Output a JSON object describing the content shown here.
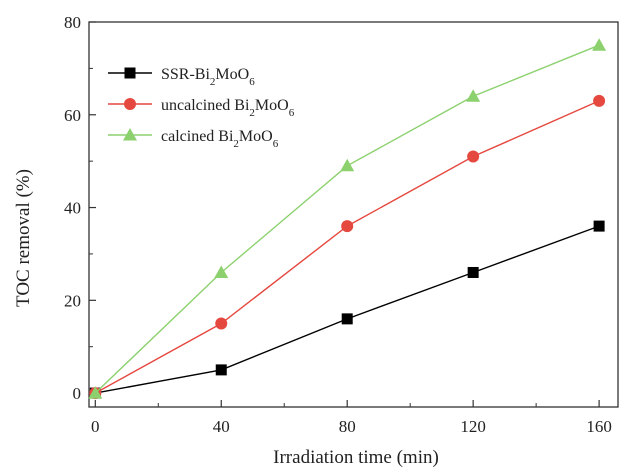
{
  "chart_data": {
    "type": "line",
    "xlabel": "Irradiation time (min)",
    "ylabel": "TOC removal (%)",
    "x": [
      0,
      40,
      80,
      120,
      160
    ],
    "xlim": [
      -2,
      166
    ],
    "ylim": [
      -3,
      80
    ],
    "xticks": [
      0,
      40,
      80,
      120,
      160
    ],
    "yticks": [
      0,
      20,
      40,
      60,
      80
    ],
    "grid": false,
    "legend_position": "top-left",
    "series": [
      {
        "name_main": "SSR-Bi",
        "sub1": "2",
        "name_mid": "MoO",
        "sub2": "6",
        "color": "#000000",
        "marker": "square",
        "values": [
          0,
          5,
          16,
          26,
          36
        ]
      },
      {
        "name_main": "uncalcined Bi",
        "sub1": "2",
        "name_mid": "MoO",
        "sub2": "6",
        "color": "#e5483f",
        "marker": "circle",
        "values": [
          0,
          15,
          36,
          51,
          63
        ]
      },
      {
        "name_main": "calcined Bi",
        "sub1": "2",
        "name_mid": "MoO",
        "sub2": "6",
        "color": "#8cd16e",
        "marker": "triangle",
        "values": [
          0,
          26,
          49,
          64,
          75
        ]
      }
    ]
  }
}
